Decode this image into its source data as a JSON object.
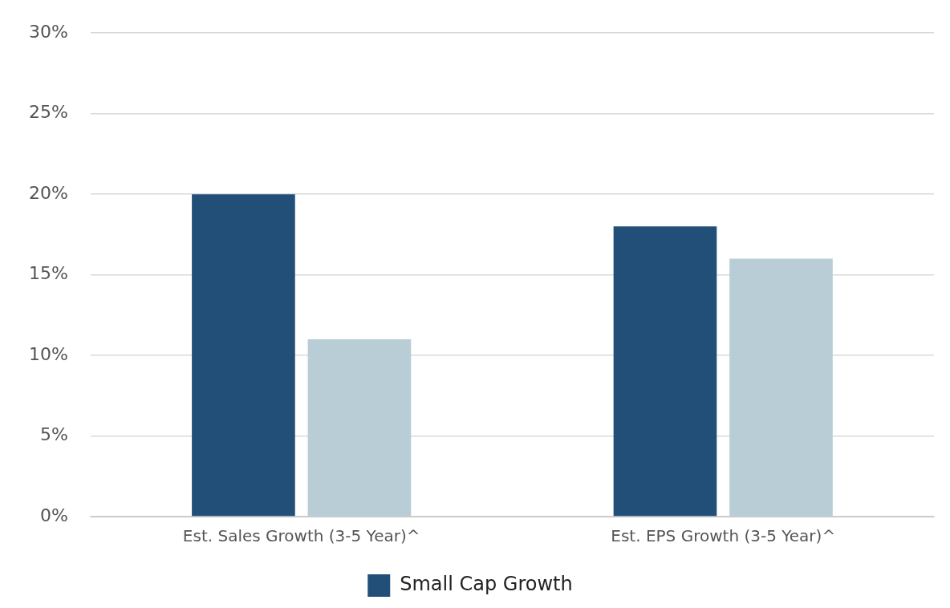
{
  "chart_data": {
    "type": "bar",
    "categories": [
      "Est. Sales Growth (3-5 Year)^",
      "Est. EPS Growth (3-5 Year)^"
    ],
    "series": [
      {
        "name": "Small Cap Growth",
        "color": "#214f78",
        "values": [
          20,
          18
        ]
      },
      {
        "color": "#b8cdd6",
        "values": [
          11,
          16
        ]
      }
    ],
    "ylim": [
      0,
      30
    ],
    "yticks": [
      {
        "value": 0,
        "label": "0%"
      },
      {
        "value": 5,
        "label": "5%"
      },
      {
        "value": 10,
        "label": "10%"
      },
      {
        "value": 15,
        "label": "15%"
      },
      {
        "value": 20,
        "label": "20%"
      },
      {
        "value": 25,
        "label": "25%"
      },
      {
        "value": 30,
        "label": "30%"
      }
    ],
    "grid": "y",
    "legend": "bottom"
  }
}
